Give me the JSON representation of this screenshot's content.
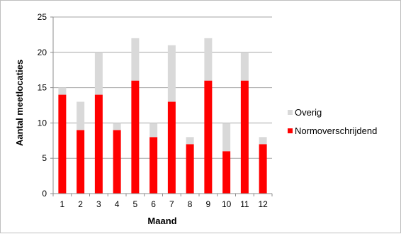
{
  "chart_data": {
    "type": "bar",
    "stacked": true,
    "categories": [
      "1",
      "2",
      "3",
      "4",
      "5",
      "6",
      "7",
      "8",
      "9",
      "10",
      "11",
      "12"
    ],
    "series": [
      {
        "name": "Normoverschrijdend",
        "color": "#ff0000",
        "values": [
          14,
          9,
          14,
          9,
          16,
          8,
          13,
          7,
          16,
          6,
          16,
          7
        ]
      },
      {
        "name": "Overig",
        "color": "#d9d9d9",
        "values": [
          1,
          4,
          6,
          1,
          6,
          2,
          8,
          1,
          6,
          4,
          4,
          1
        ]
      }
    ],
    "xlabel": "Maand",
    "ylabel": "Aantal meetlocaties",
    "ylim": [
      0,
      25
    ],
    "yticks": [
      0,
      5,
      10,
      15,
      20,
      25
    ],
    "grid": true,
    "legend_position": "right",
    "legend_order": [
      "Overig",
      "Normoverschrijdend"
    ]
  }
}
